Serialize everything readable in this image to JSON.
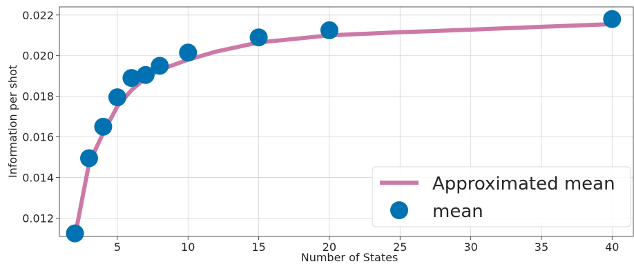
{
  "chart_data": {
    "type": "line",
    "title": "",
    "xlabel": "Number of States",
    "ylabel": "Information per shot",
    "xlim": [
      0.9,
      41.5
    ],
    "ylim": [
      0.0111,
      0.0224
    ],
    "xticks": [
      5,
      10,
      15,
      20,
      25,
      30,
      35,
      40
    ],
    "yticks": [
      0.012,
      0.014,
      0.016,
      0.018,
      0.02,
      0.022
    ],
    "grid": true,
    "legend_position": "lower-right",
    "series": [
      {
        "name": "Approximated mean",
        "style": "line",
        "color": "#cc79a7",
        "x": [
          2,
          3,
          4,
          5,
          6,
          7,
          8,
          10,
          12,
          15,
          20,
          25,
          30,
          35,
          40
        ],
        "y": [
          0.0111,
          0.0147,
          0.0162,
          0.0175,
          0.0183,
          0.0189,
          0.0193,
          0.0198,
          0.0202,
          0.02065,
          0.021,
          0.02115,
          0.02128,
          0.02142,
          0.02155
        ]
      },
      {
        "name": "mean",
        "style": "scatter",
        "color": "#0072b2",
        "x": [
          2,
          3,
          4,
          5,
          6,
          7,
          8,
          10,
          15,
          20,
          40
        ],
        "y": [
          0.01125,
          0.01495,
          0.0165,
          0.01795,
          0.0189,
          0.01905,
          0.0195,
          0.02015,
          0.0209,
          0.02125,
          0.0218
        ]
      }
    ]
  }
}
